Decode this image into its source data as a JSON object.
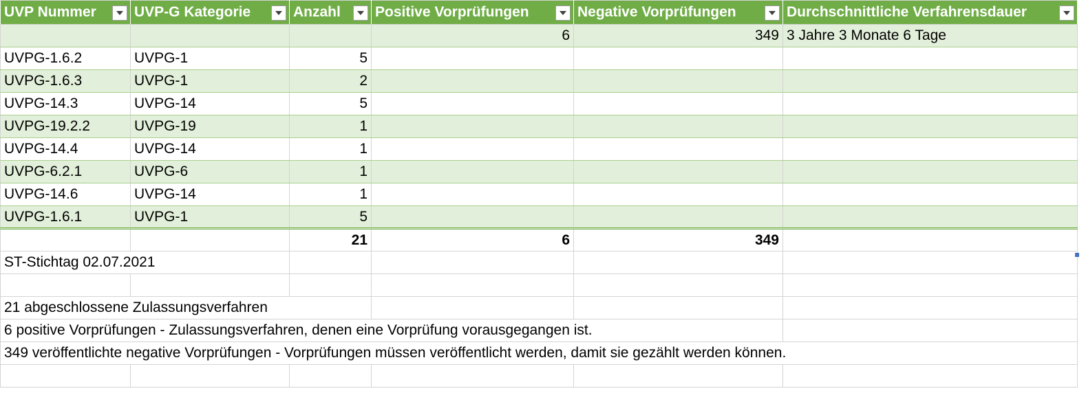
{
  "header": {
    "columns": [
      "UVP Nummer",
      "UVP-G Kategorie",
      "Anzahl",
      "Positive Vorprüfungen",
      "Negative Vorprüfungen",
      "Durchschnittliche Verfahrensdauer"
    ]
  },
  "summary_row": {
    "positive": "6",
    "negative": "349",
    "duration": "3 Jahre 3 Monate 6 Tage"
  },
  "rows": [
    {
      "uvp": "UVPG-1.6.2",
      "kategorie": "UVPG-1",
      "anzahl": "5"
    },
    {
      "uvp": "UVPG-1.6.3",
      "kategorie": "UVPG-1",
      "anzahl": "2"
    },
    {
      "uvp": "UVPG-14.3",
      "kategorie": "UVPG-14",
      "anzahl": "5"
    },
    {
      "uvp": "UVPG-19.2.2",
      "kategorie": "UVPG-19",
      "anzahl": "1"
    },
    {
      "uvp": "UVPG-14.4",
      "kategorie": "UVPG-14",
      "anzahl": "1"
    },
    {
      "uvp": "UVPG-6.2.1",
      "kategorie": "UVPG-6",
      "anzahl": "1"
    },
    {
      "uvp": "UVPG-14.6",
      "kategorie": "UVPG-14",
      "anzahl": "1"
    },
    {
      "uvp": "UVPG-1.6.1",
      "kategorie": "UVPG-1",
      "anzahl": "5"
    }
  ],
  "totals": {
    "anzahl": "21",
    "positive": "6",
    "negative": "349"
  },
  "notes": {
    "stichtag": "ST-Stichtag 02.07.2021",
    "line1": "21 abgeschlossene Zulassungsverfahren",
    "line2": "6 positive Vorprüfungen - Zulassungsverfahren, denen eine Vorprüfung vorausgegangen ist.",
    "line3": "349 veröffentlichte negative Vorprüfungen - Vorprüfungen müssen veröffentlicht werden, damit sie gezählt werden können."
  },
  "colors": {
    "header_bg": "#70ad47",
    "band_bg": "#e2efda",
    "band_border": "#a9d08e"
  },
  "icons": {
    "filter": "filter-dropdown-icon"
  }
}
